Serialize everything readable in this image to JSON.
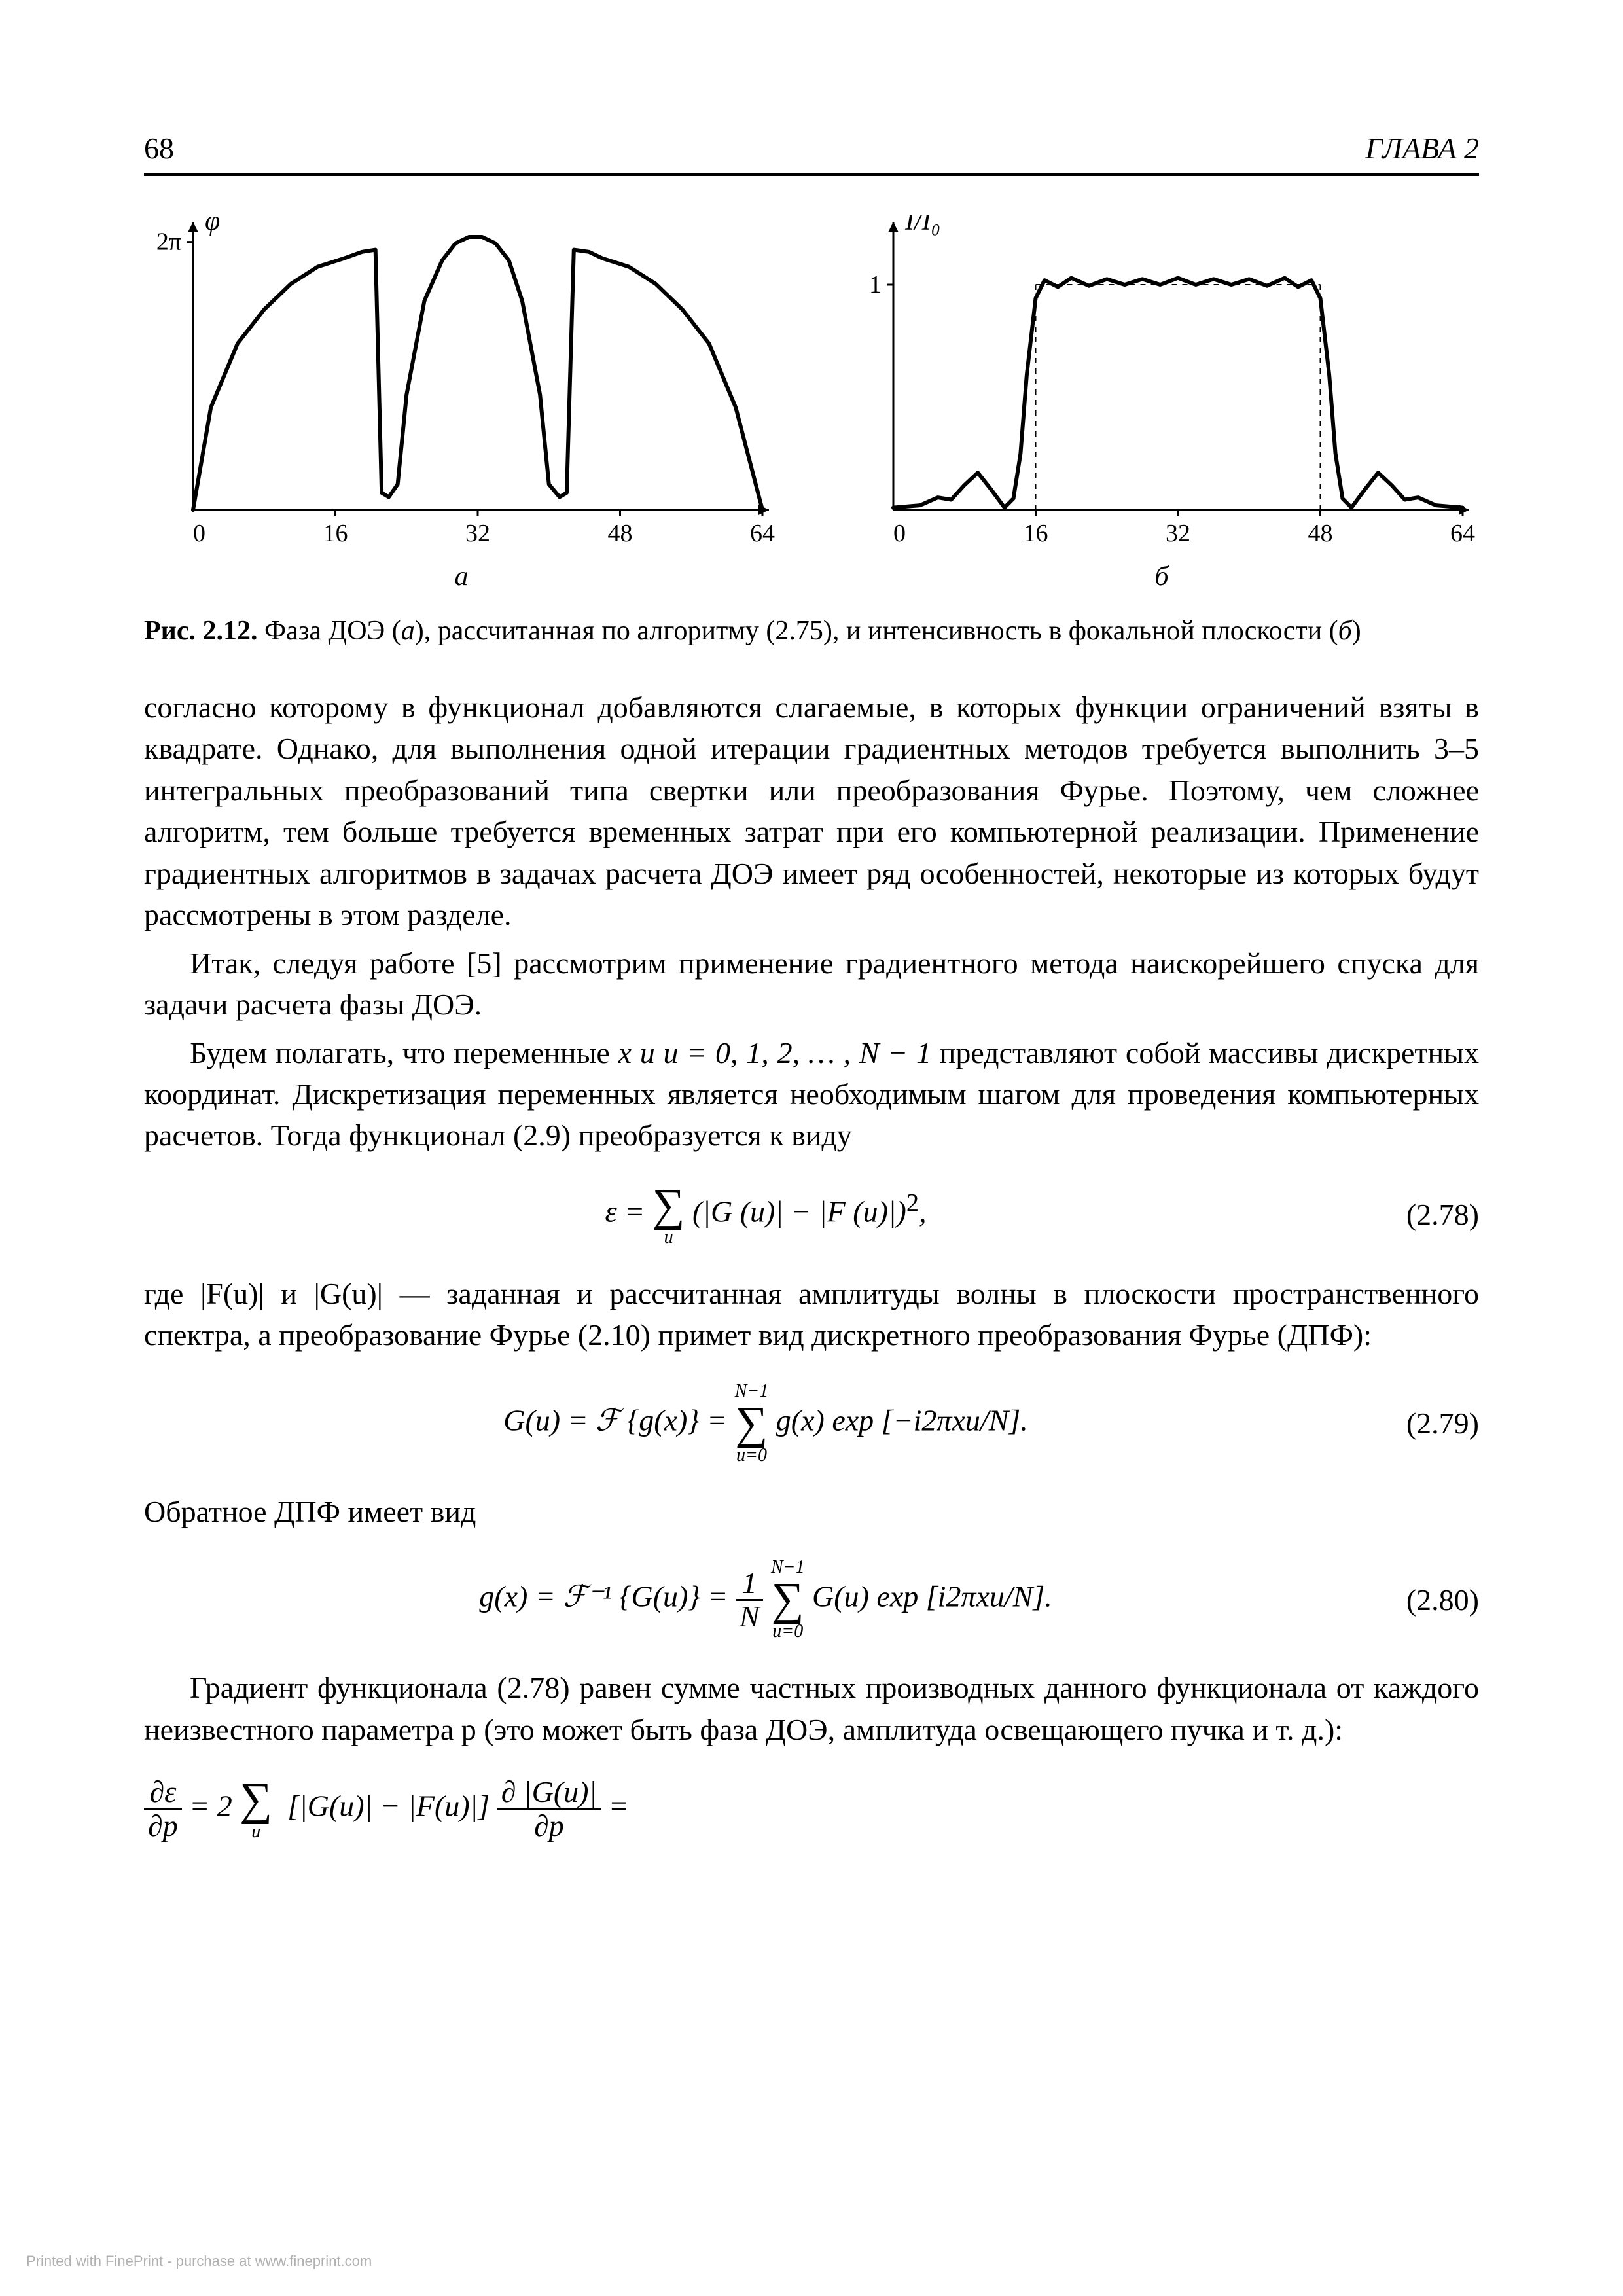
{
  "header": {
    "page_number": "68",
    "chapter_label": "ГЛАВА 2"
  },
  "chart_a": {
    "type": "line",
    "y_label": "φ",
    "y_tick_label": "2π",
    "x_ticks": [
      "0",
      "16",
      "32",
      "48",
      "64"
    ],
    "xlim": [
      0,
      64
    ],
    "ylim": [
      0,
      6.6
    ],
    "y_tick_val": 6.2832,
    "sub_label": "а",
    "line_color": "#000000",
    "line_width": 6,
    "axis_color": "#000000",
    "axis_width": 3,
    "tick_font_size": 38,
    "points": [
      [
        0,
        0
      ],
      [
        2,
        2.4
      ],
      [
        5,
        3.9
      ],
      [
        8,
        4.7
      ],
      [
        11,
        5.3
      ],
      [
        14,
        5.7
      ],
      [
        17,
        5.9
      ],
      [
        19,
        6.05
      ],
      [
        20.5,
        6.1
      ],
      [
        21.2,
        0.4
      ],
      [
        22,
        0.3
      ],
      [
        23,
        0.6
      ],
      [
        24,
        2.7
      ],
      [
        26,
        4.9
      ],
      [
        28,
        5.85
      ],
      [
        29.5,
        6.25
      ],
      [
        31,
        6.4
      ],
      [
        32.5,
        6.4
      ],
      [
        34,
        6.25
      ],
      [
        35.5,
        5.85
      ],
      [
        37,
        4.9
      ],
      [
        39,
        2.7
      ],
      [
        40,
        0.6
      ],
      [
        41.2,
        0.3
      ],
      [
        42.0,
        0.4
      ],
      [
        42.8,
        6.1
      ],
      [
        44.5,
        6.05
      ],
      [
        46,
        5.9
      ],
      [
        49,
        5.7
      ],
      [
        52,
        5.3
      ],
      [
        55,
        4.7
      ],
      [
        58,
        3.9
      ],
      [
        61,
        2.4
      ],
      [
        64,
        0
      ]
    ]
  },
  "chart_b": {
    "type": "line",
    "y_label": "I/I₀",
    "y_tick_label": "1",
    "x_ticks": [
      "0",
      "16",
      "32",
      "48",
      "64"
    ],
    "xlim": [
      0,
      64
    ],
    "ylim": [
      0,
      1.25
    ],
    "y_tick_val": 1.0,
    "sub_label": "б",
    "line_color": "#000000",
    "line_width": 6,
    "dash_color": "#000000",
    "dash_width": 2,
    "axis_color": "#000000",
    "axis_width": 3,
    "tick_font_size": 38,
    "points": [
      [
        0,
        0.01
      ],
      [
        3,
        0.02
      ],
      [
        5,
        0.055
      ],
      [
        6.5,
        0.045
      ],
      [
        8,
        0.11
      ],
      [
        9.5,
        0.165
      ],
      [
        11,
        0.09
      ],
      [
        12.5,
        0.01
      ],
      [
        13.5,
        0.05
      ],
      [
        14.3,
        0.25
      ],
      [
        15,
        0.6
      ],
      [
        16,
        0.94
      ],
      [
        17,
        1.02
      ],
      [
        18.5,
        0.99
      ],
      [
        20,
        1.03
      ],
      [
        22,
        0.995
      ],
      [
        24,
        1.025
      ],
      [
        26,
        1.0
      ],
      [
        28,
        1.025
      ],
      [
        30,
        1.0
      ],
      [
        32,
        1.03
      ],
      [
        34,
        1.0
      ],
      [
        36,
        1.025
      ],
      [
        38,
        1.0
      ],
      [
        40,
        1.025
      ],
      [
        42,
        0.995
      ],
      [
        44,
        1.03
      ],
      [
        45.5,
        0.99
      ],
      [
        47,
        1.02
      ],
      [
        48,
        0.94
      ],
      [
        49,
        0.6
      ],
      [
        49.7,
        0.25
      ],
      [
        50.5,
        0.05
      ],
      [
        51.5,
        0.01
      ],
      [
        53,
        0.09
      ],
      [
        54.5,
        0.165
      ],
      [
        56,
        0.11
      ],
      [
        57.5,
        0.045
      ],
      [
        59,
        0.055
      ],
      [
        61,
        0.02
      ],
      [
        64,
        0.01
      ]
    ],
    "dash_rects": [
      [
        16,
        0,
        16,
        1
      ],
      [
        48,
        0,
        48,
        1
      ]
    ]
  },
  "caption": {
    "label": "Рис. 2.12.",
    "text_a": " Фаза ДОЭ (",
    "ital_a": "а",
    "text_b": "), рассчитанная по алгоритму (2.75), и интенсивность в фокальной плоскости (",
    "ital_b": "б",
    "text_c": ")"
  },
  "paragraphs": {
    "p1": "согласно которому в функционал добавляются слагаемые, в которых функции ограничений взяты в квадрате. Однако, для выполнения одной итерации градиентных методов требуется выполнить 3–5 интегральных преобразований типа свертки или преобразования Фурье. Поэтому, чем сложнее алгоритм, тем больше требуется временных затрат при его компьютерной реализации. Применение градиентных алгоритмов в задачах расчета ДОЭ имеет ряд особенностей, некоторые из которых будут рассмотрены в этом разделе.",
    "p2": "Итак, следуя работе [5] рассмотрим применение градиентного метода наискорейшего спуска для задачи расчета фазы ДОЭ.",
    "p3_a": "Будем полагать, что переменные ",
    "p3_math": "x и u = 0, 1, 2, … , N − 1",
    "p3_b": " представляют собой массивы дискретных координат. Дискретизация переменных является необходимым шагом для проведения компьютерных расчетов. Тогда функционал (2.9) преобразуется к виду",
    "p4_a": "где |F(u)| и |G(u)| — заданная и рассчитанная амплитуды волны в плоскости пространственного спектра, а преобразование Фурье (2.10) примет вид дискретного преобразования Фурье (ДПФ):",
    "p5": "Обратное ДПФ имеет вид",
    "p6": "Градиент функционала (2.78) равен сумме частных производных данного функционала от каждого неизвестного параметра p (это может быть фаза ДОЭ, амплитуда освещающего пучка и т. д.):"
  },
  "eqs": {
    "e278": {
      "num": "(2.78)",
      "lhs": "ε =",
      "sum_sub": "u",
      "body_a": "(|G (u)| − |F (u)|)",
      "sup": "2",
      "tail": ","
    },
    "e279": {
      "num": "(2.79)",
      "lhs": "G(u) = ℱ {g(x)} =",
      "sum_top": "N−1",
      "sum_bot": "u=0",
      "body": "g(x) exp [−i2πxu/N].",
      "tail": ""
    },
    "e280": {
      "num": "(2.80)",
      "lhs": "g(x) = ℱ⁻¹ {G(u)} =",
      "frac_num": "1",
      "frac_den": "N",
      "sum_top": "N−1",
      "sum_bot": "u=0",
      "body": "G(u) exp [i2πxu/N].",
      "tail": ""
    },
    "grad": {
      "lhs_num": "∂ε",
      "lhs_den": "∂p",
      "eq": " = 2",
      "sum_sub": "u",
      "mid": "[|G(u)| − |F(u)|]",
      "rhs_num": "∂ |G(u)|",
      "rhs_den": "∂p",
      "tail": " ="
    }
  },
  "footer": "Printed with FinePrint - purchase at www.fineprint.com"
}
